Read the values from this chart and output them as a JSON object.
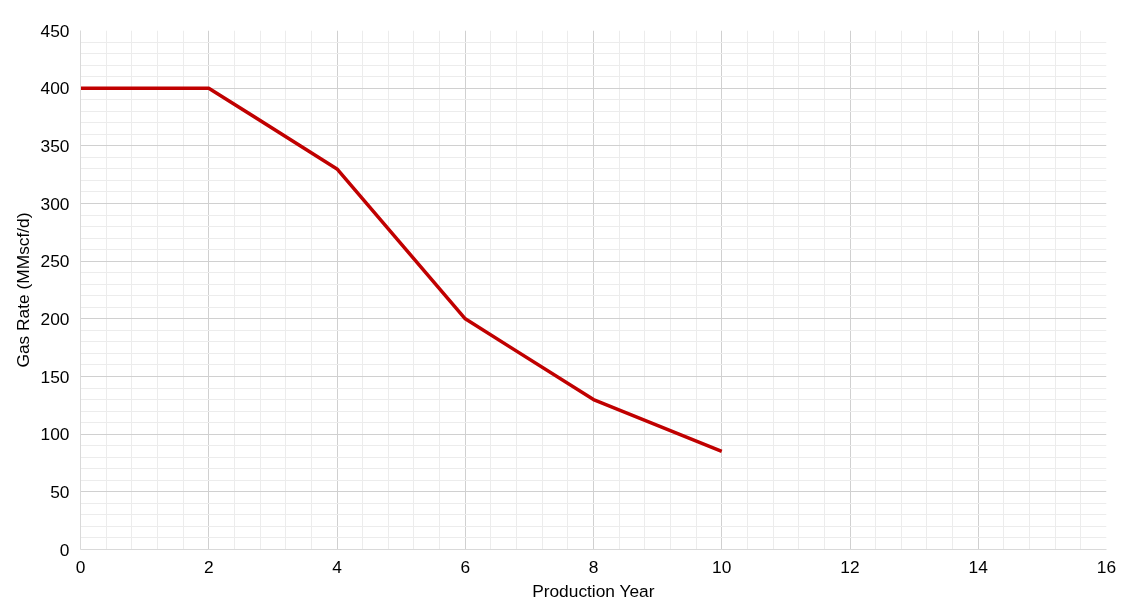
{
  "chart_data": {
    "type": "line",
    "xlabel": "Production Year",
    "ylabel": "Gas Rate (MMscf/d)",
    "x": [
      0,
      2,
      4,
      6,
      8,
      10
    ],
    "series": [
      {
        "color": "#c00000",
        "values": [
          400,
          400,
          330,
          200,
          130,
          85
        ]
      }
    ],
    "xlim": [
      0,
      16
    ],
    "xticks": [
      0,
      2,
      4,
      6,
      8,
      10,
      12,
      14,
      16
    ],
    "ylim": [
      0,
      450
    ],
    "yticks": [
      0,
      50,
      100,
      150,
      200,
      250,
      300,
      350,
      400,
      450
    ],
    "grid": true,
    "marker": "none",
    "line_style": "solid"
  }
}
